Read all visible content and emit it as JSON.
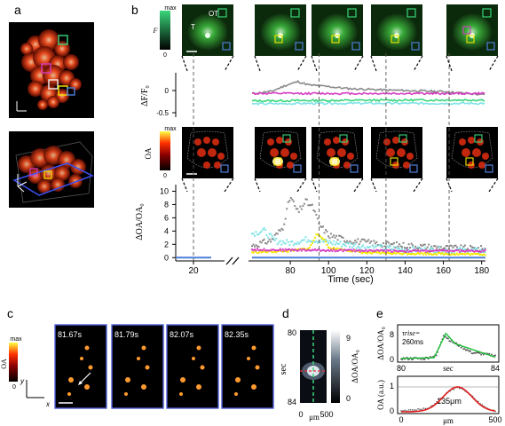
{
  "panels": {
    "a": {
      "letter": "a"
    },
    "b": {
      "letter": "b"
    },
    "c": {
      "letter": "c"
    },
    "d": {
      "letter": "d"
    },
    "e": {
      "letter": "e"
    }
  },
  "panel_b": {
    "fluor_colorbar": {
      "max": "max",
      "label": "F",
      "bottom": "0"
    },
    "oa_colorbar": {
      "max": "max",
      "label": "OA",
      "bottom": "0"
    },
    "fluor_first_labels": {
      "t": "T",
      "ot": "OT"
    },
    "fluor_trace_ylabel": "ΔF/F₀",
    "fluor_trace_ticks": [
      "0",
      "-0.5"
    ],
    "oa_trace_ylabel": "ΔOA/OA₀",
    "oa_trace_ticks": [
      "10",
      "8",
      "6",
      "4",
      "2",
      "0"
    ],
    "x_ticks": [
      "20",
      "80",
      "100",
      "120",
      "140",
      "160",
      "180"
    ],
    "xlabel": "Time (sec)",
    "colors": {
      "gray": "#8a8a8a",
      "magenta": "#d63cc2",
      "cyan": "#7ee3e6",
      "yellow": "#f5e600",
      "blue": "#4f7fd8",
      "green": "#39d67a"
    }
  },
  "panel_c": {
    "colorbar": {
      "max": "max",
      "label": "OA",
      "bottom": "0"
    },
    "axes": {
      "y": "y",
      "x": "x"
    },
    "frames": [
      "81.67s",
      "81.79s",
      "82.07s",
      "82.35s"
    ]
  },
  "panel_d": {
    "ylabel": "sec",
    "y_ticks": [
      "80",
      "84"
    ],
    "x_ticks": [
      "0",
      "500"
    ],
    "xlabel": "μm",
    "colorbar": {
      "label": "ΔOA/OA₀",
      "top": "9",
      "bottom": "0"
    }
  },
  "panel_e": {
    "top_ylabel": "ΔOA/OA₀",
    "top_y_ticks": [
      "8",
      "0"
    ],
    "top_x_ticks": [
      "80",
      "84"
    ],
    "top_xlabel": "sec",
    "rise_label": "τrise=",
    "rise_value": "260ms",
    "bottom_ylabel": "OA (a.u.)",
    "bottom_y_ticks": [
      "1",
      "0"
    ],
    "bottom_x_ticks": [
      "0",
      "500"
    ],
    "bottom_xlabel": "μm",
    "width_label": "135μm"
  },
  "chart_data": [
    {
      "type": "line",
      "panel": "b-fluorescence",
      "ylabel": "ΔF/F₀",
      "xlabel": "Time (sec)",
      "ylim": [
        -0.6,
        0.3
      ],
      "series": [
        {
          "color": "gray",
          "x": [
            60,
            70,
            78,
            84,
            90,
            100,
            110,
            130,
            160,
            182
          ],
          "values": [
            -0.12,
            -0.08,
            0.05,
            0.12,
            0.05,
            0.02,
            -0.02,
            -0.05,
            -0.08,
            -0.15
          ]
        },
        {
          "color": "magenta",
          "x": [
            60,
            100,
            182
          ],
          "values": [
            -0.12,
            -0.12,
            -0.12
          ]
        },
        {
          "color": "green",
          "x": [
            60,
            100,
            182
          ],
          "values": [
            -0.27,
            -0.26,
            -0.25
          ]
        },
        {
          "color": "cyan",
          "x": [
            60,
            100,
            182
          ],
          "values": [
            -0.33,
            -0.32,
            -0.32
          ]
        }
      ]
    },
    {
      "type": "line",
      "panel": "b-optoacoustic",
      "ylabel": "ΔOA/OA₀",
      "xlabel": "Time (sec)",
      "ylim": [
        -0.5,
        11
      ],
      "series": [
        {
          "color": "gray",
          "x": [
            60,
            70,
            76,
            80,
            84,
            88,
            92,
            95,
            100,
            110,
            130,
            160,
            182
          ],
          "values": [
            1.8,
            2.6,
            4.5,
            9.2,
            6.8,
            8.5,
            7.5,
            5.0,
            3.4,
            2.6,
            2.0,
            1.5,
            1.3
          ]
        },
        {
          "color": "cyan",
          "x": [
            60,
            66,
            72,
            80,
            90,
            100,
            120,
            140,
            182
          ],
          "values": [
            3.6,
            4.1,
            2.5,
            2.2,
            2.8,
            2.3,
            1.6,
            1.2,
            1.0
          ]
        },
        {
          "color": "yellow",
          "x": [
            60,
            80,
            90,
            94,
            97,
            100,
            120,
            182
          ],
          "values": [
            0.8,
            1.0,
            1.4,
            3.6,
            3.0,
            1.5,
            0.7,
            0.5
          ]
        },
        {
          "color": "magenta",
          "x": [
            60,
            100,
            140,
            182
          ],
          "values": [
            1.2,
            1.1,
            1.0,
            1.0
          ]
        },
        {
          "color": "blue",
          "x": [
            10,
            30,
            60,
            182
          ],
          "values": [
            0.0,
            0.0,
            0.0,
            0.0
          ]
        }
      ]
    },
    {
      "type": "line",
      "panel": "e-top",
      "ylabel": "ΔOA/OA₀",
      "xlabel": "sec",
      "series": [
        {
          "color": "gray",
          "x": [
            80,
            81,
            81.5,
            81.8,
            82.1,
            83,
            84
          ],
          "values": [
            0,
            0,
            1,
            8,
            6,
            2,
            1
          ]
        },
        {
          "color": "green",
          "x": [
            80,
            81.4,
            81.9,
            82.3,
            84
          ],
          "values": [
            0,
            0.3,
            8.5,
            5,
            0.5
          ]
        }
      ]
    },
    {
      "type": "line",
      "panel": "e-bottom",
      "ylabel": "OA (a.u.)",
      "xlabel": "μm",
      "series": [
        {
          "color": "red",
          "x": [
            0,
            150,
            250,
            300,
            350,
            450,
            500
          ],
          "values": [
            0.02,
            0.15,
            0.8,
            1.0,
            0.8,
            0.15,
            0.02
          ]
        }
      ]
    }
  ]
}
